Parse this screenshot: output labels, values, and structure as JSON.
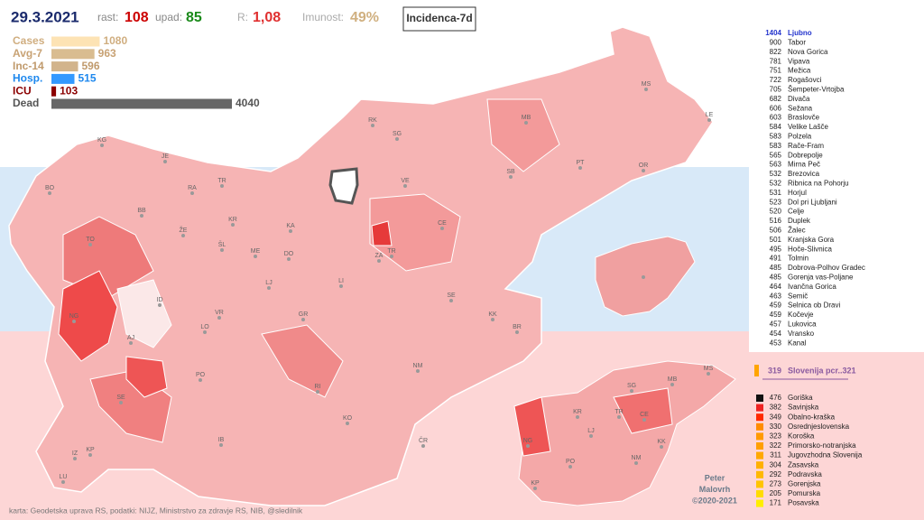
{
  "header": {
    "date": "29.3.2021",
    "growth_label": "rast:",
    "growth": 108,
    "decline_label": "upad:",
    "decline": 85,
    "r_label": "R:",
    "r": "1,08",
    "immunity_label": "Imunost:",
    "immunity": "49%",
    "mode_button": "Incidenca-7d"
  },
  "stats": [
    {
      "label": "Cases",
      "value": 1080,
      "color": "#fde3b4",
      "text_color": "#d0ae80"
    },
    {
      "label": "Avg-7",
      "value": 963,
      "color": "#d9bc90",
      "text_color": "#c8a274"
    },
    {
      "label": "Inc-14",
      "value": 596,
      "color": "#d2b48c",
      "text_color": "#c09a6c"
    },
    {
      "label": "Hosp.",
      "value": 515,
      "color": "#3399ff",
      "text_color": "#1e88ee"
    },
    {
      "label": "ICU",
      "value": 103,
      "color": "#8b0000",
      "text_color": "#8b0000"
    },
    {
      "label": "Dead",
      "value": 4040,
      "color": "#666666",
      "text_color": "#555555"
    }
  ],
  "municipalities": [
    {
      "value": 1404,
      "name": "Ljubno"
    },
    {
      "value": 900,
      "name": "Tabor"
    },
    {
      "value": 822,
      "name": "Nova Gorica"
    },
    {
      "value": 781,
      "name": "Vipava"
    },
    {
      "value": 751,
      "name": "Mežica"
    },
    {
      "value": 722,
      "name": "Rogašovci"
    },
    {
      "value": 705,
      "name": "Šempeter-Vrtojba"
    },
    {
      "value": 682,
      "name": "Divača"
    },
    {
      "value": 606,
      "name": "Sežana"
    },
    {
      "value": 603,
      "name": "Braslovče"
    },
    {
      "value": 584,
      "name": "Velike Lašče"
    },
    {
      "value": 583,
      "name": "Polzela"
    },
    {
      "value": 583,
      "name": "Rače-Fram"
    },
    {
      "value": 565,
      "name": "Dobrepolje"
    },
    {
      "value": 563,
      "name": "Mirna Peč"
    },
    {
      "value": 532,
      "name": "Brezovica"
    },
    {
      "value": 532,
      "name": "Ribnica na Pohorju"
    },
    {
      "value": 531,
      "name": "Horjul"
    },
    {
      "value": 523,
      "name": "Dol pri Ljubljani"
    },
    {
      "value": 520,
      "name": "Celje"
    },
    {
      "value": 516,
      "name": "Duplek"
    },
    {
      "value": 506,
      "name": "Žalec"
    },
    {
      "value": 501,
      "name": "Kranjska Gora"
    },
    {
      "value": 495,
      "name": "Hoče-Slivnica"
    },
    {
      "value": 491,
      "name": "Tolmin"
    },
    {
      "value": 485,
      "name": "Dobrova-Polhov Gradec"
    },
    {
      "value": 485,
      "name": "Gorenja vas-Poljane"
    },
    {
      "value": 464,
      "name": "Ivančna Gorica"
    },
    {
      "value": 463,
      "name": "Semič"
    },
    {
      "value": 459,
      "name": "Selnica ob Dravi"
    },
    {
      "value": 459,
      "name": "Kočevje"
    },
    {
      "value": 457,
      "name": "Lukovica"
    },
    {
      "value": 454,
      "name": "Vransko"
    },
    {
      "value": 453,
      "name": "Kanal"
    }
  ],
  "national": {
    "value": 319,
    "label": "Slovenija pcr..321",
    "color": "#ffa500"
  },
  "regions": [
    {
      "value": 476,
      "name": "Goriška",
      "color": "#111111"
    },
    {
      "value": 382,
      "name": "Savinjska",
      "color": "#ee2222"
    },
    {
      "value": 349,
      "name": "Obalno-kraška",
      "color": "#ff2a00"
    },
    {
      "value": 330,
      "name": "Osrednjeslovenska",
      "color": "#ff8c00"
    },
    {
      "value": 323,
      "name": "Koroška",
      "color": "#ff9a00"
    },
    {
      "value": 322,
      "name": "Primorsko-notranjska",
      "color": "#ff9f00"
    },
    {
      "value": 311,
      "name": "Jugovzhodna Slovenija",
      "color": "#ffa800"
    },
    {
      "value": 304,
      "name": "Zasavska",
      "color": "#ffb000"
    },
    {
      "value": 292,
      "name": "Podravska",
      "color": "#ffb800"
    },
    {
      "value": 273,
      "name": "Gorenjska",
      "color": "#ffc400"
    },
    {
      "value": 205,
      "name": "Pomurska",
      "color": "#ffdc00"
    },
    {
      "value": 171,
      "name": "Posavska",
      "color": "#ffee00"
    }
  ],
  "map_labels": [
    "KG",
    "JE",
    "BO",
    "RA",
    "TR",
    "BB",
    "ŽE",
    "KR",
    "TO",
    "ŠL",
    "ME",
    "DO",
    "KA",
    "VE",
    "SG",
    "RK",
    "MB",
    "MS",
    "LE",
    "PT",
    "OR",
    "SB",
    "CE",
    "TR",
    "ZA",
    "ID",
    "LJ",
    "LI",
    "SE",
    "KK",
    "BR",
    "NG",
    "AJ",
    "VR",
    "LO",
    "GR",
    "PO",
    "SE",
    "RI",
    "NM",
    "KO",
    "ČR",
    "IB",
    "IZ",
    "KP",
    "LU"
  ],
  "region_map_labels": [
    "MS",
    "SG",
    "MB",
    "KR",
    "TR",
    "CE",
    "LJ",
    "KK",
    "NG",
    "PO",
    "NM",
    "KP"
  ],
  "author": [
    "Peter",
    "Malovrh",
    "©2020-2021"
  ],
  "footer": "karta: Geodetska uprava RS, podatki: NIJZ, Ministrstvo za zdravje RS, NIB, @sledilnik"
}
